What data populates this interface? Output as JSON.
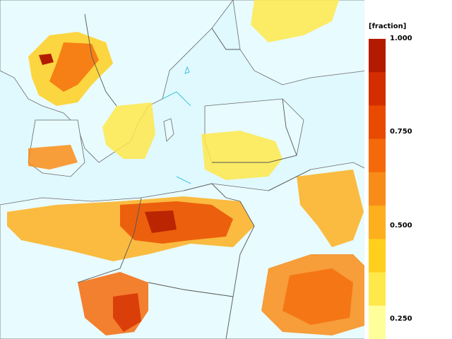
{
  "legend": {
    "unit": "[fraction]",
    "ticks": [
      "1.000",
      "0.750",
      "0.500",
      "0.250"
    ],
    "colors": [
      "#b31b00",
      "#d42e00",
      "#e84a00",
      "#f46a0a",
      "#f98c18",
      "#fdaf1e",
      "#ffcf1e",
      "#ffe84a",
      "#ffff9a"
    ]
  },
  "map": {
    "background": "#dff9ff",
    "coast_color": "#1ab4d4",
    "border_color": "#555555"
  }
}
